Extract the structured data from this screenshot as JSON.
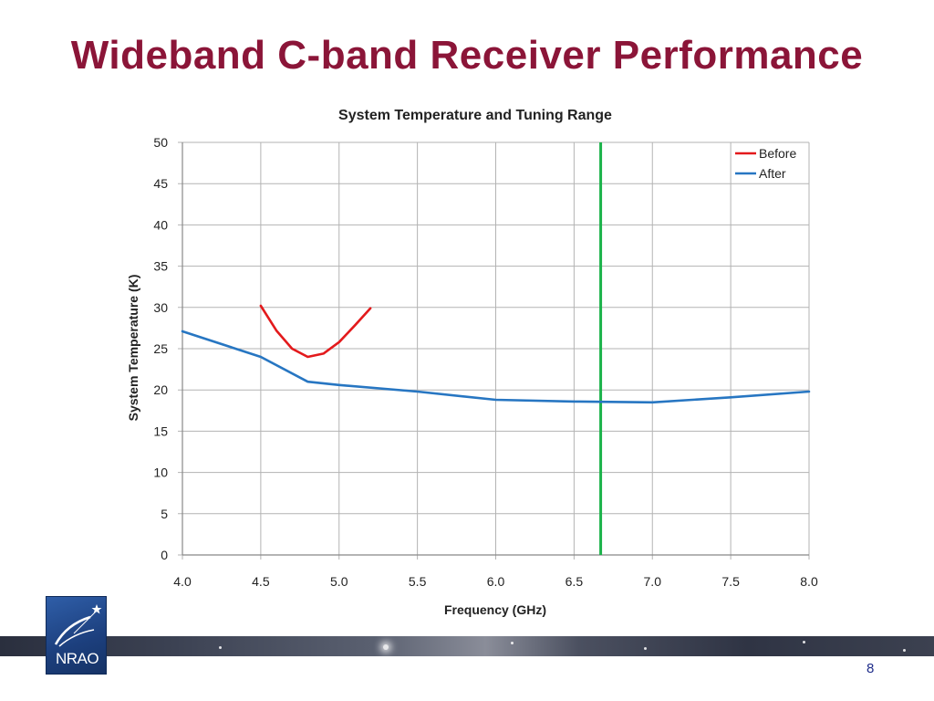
{
  "slide": {
    "title": "Wideband C-band Receiver Performance",
    "page_number": "8",
    "logo_text": "NRAO"
  },
  "colors": {
    "title": "#8b1538",
    "before_series": "#e31a1c",
    "after_series": "#2776c2",
    "marker_line": "#1bb34a",
    "grid": "#b3b3b3"
  },
  "chart_data": {
    "type": "line",
    "title": "System Temperature and Tuning Range",
    "xlabel": "Frequency (GHz)",
    "ylabel": "System Temperature (K)",
    "xlim": [
      4.0,
      8.0
    ],
    "ylim": [
      0,
      50
    ],
    "x_ticks": [
      "4.0",
      "4.5",
      "5.0",
      "5.5",
      "6.0",
      "6.5",
      "7.0",
      "7.5",
      "8.0"
    ],
    "y_ticks": [
      "0",
      "5",
      "10",
      "15",
      "20",
      "25",
      "30",
      "35",
      "40",
      "45",
      "50"
    ],
    "grid": true,
    "legend_position": "top-right",
    "series": [
      {
        "name": "Before",
        "color": "#e31a1c",
        "x": [
          4.5,
          4.6,
          4.7,
          4.8,
          4.9,
          5.0,
          5.1,
          5.2
        ],
        "y": [
          30.2,
          27.2,
          25.0,
          24.0,
          24.4,
          25.8,
          27.8,
          29.9
        ]
      },
      {
        "name": "After",
        "color": "#2776c2",
        "x": [
          4.0,
          4.5,
          4.8,
          5.0,
          5.5,
          6.0,
          6.5,
          7.0,
          7.5,
          8.0
        ],
        "y": [
          27.1,
          24.0,
          21.0,
          20.6,
          19.8,
          18.8,
          18.6,
          18.5,
          19.1,
          19.8
        ]
      }
    ],
    "vertical_markers": [
      {
        "x": 6.67,
        "color": "#1bb34a"
      }
    ]
  }
}
